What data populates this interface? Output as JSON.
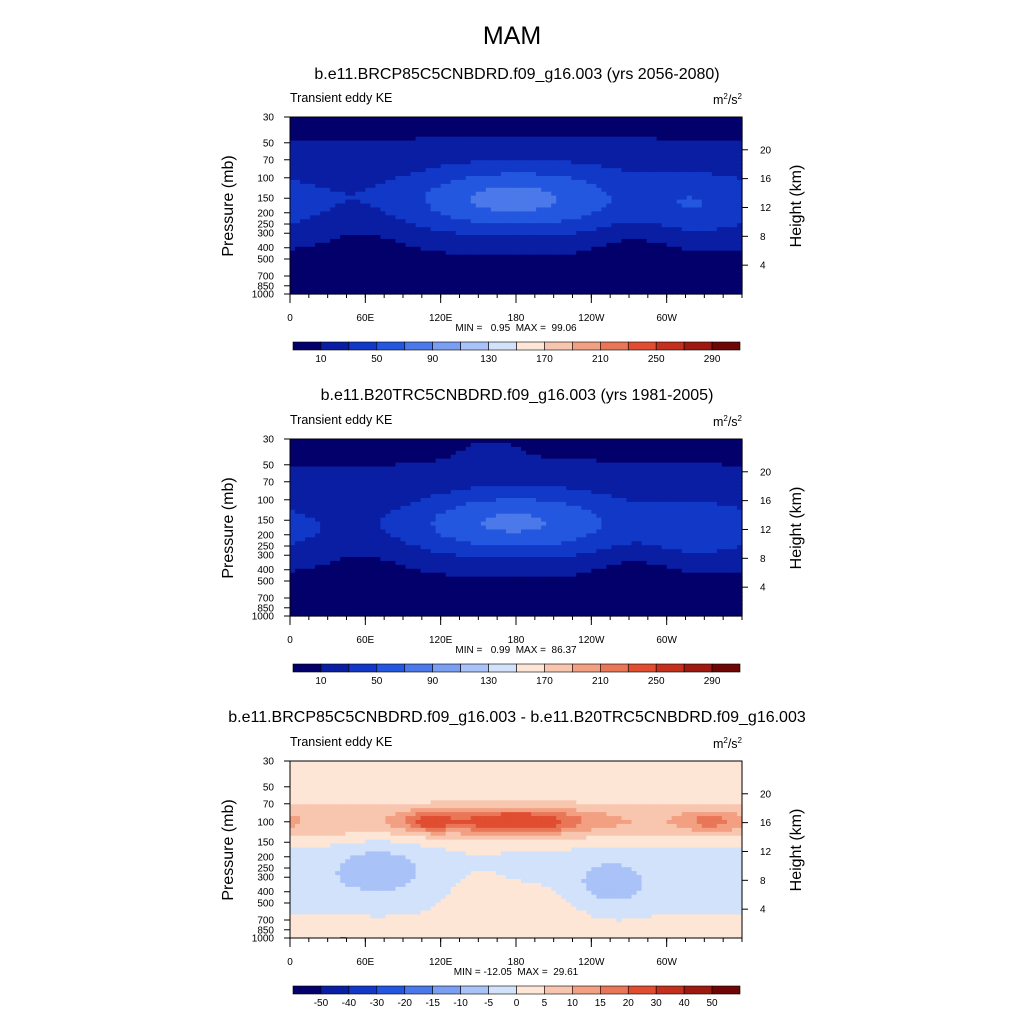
{
  "figure_title": "MAM",
  "field_label": "Transient eddy KE",
  "units_base": "m",
  "units_exp": "2",
  "units_mid": "/s",
  "units_exp2": "2",
  "left_axis_label": "Pressure (mb)",
  "right_axis_label": "Height (km)",
  "pressure_ticks": [
    "30",
    "50",
    "70",
    "100",
    "150",
    "200",
    "250",
    "300",
    "400",
    "500",
    "700",
    "850",
    "1000"
  ],
  "height_ticks": [
    "20",
    "16",
    "12",
    "8",
    "4"
  ],
  "lon_ticks": [
    "0",
    "60E",
    "120E",
    "180",
    "120W",
    "60W"
  ],
  "colors": {
    "abs_palette": [
      "#03006b",
      "#0a1ea3",
      "#1238c8",
      "#2457e0",
      "#4b79ea",
      "#7a9ef2",
      "#a9c2f7",
      "#d2e2fb",
      "#fde6d6",
      "#f8c6ae",
      "#f29f82",
      "#ea7658",
      "#e04d31",
      "#c4301c",
      "#9e1a10",
      "#6e0606"
    ],
    "diff_palette": [
      "#03006b",
      "#0a1ea3",
      "#1238c8",
      "#2457e0",
      "#4b79ea",
      "#7a9ef2",
      "#a9c2f7",
      "#d2e2fb",
      "#fde6d6",
      "#f8c6ae",
      "#f29f82",
      "#ea7658",
      "#e04d31",
      "#c4301c",
      "#9e1a10",
      "#6e0606"
    ],
    "terrain": "#000000"
  },
  "chart_data": [
    {
      "type": "heatmap",
      "title": "b.e11.BRCP85C5CNBDRD.f09_g16.003 (yrs 2056-2080)",
      "stats": "MIN =   0.95  MAX =  99.06",
      "colorbar_labels": [
        "10",
        "50",
        "90",
        "130",
        "170",
        "210",
        "250",
        "290"
      ],
      "colorbar_levels": [
        10,
        30,
        50,
        70,
        90,
        110,
        130,
        150,
        170,
        190,
        210,
        230,
        250,
        270,
        290
      ],
      "x_range": [
        0,
        360
      ],
      "pressure_range_mb": [
        30,
        1000
      ]
    },
    {
      "type": "heatmap",
      "title": "b.e11.B20TRC5CNBDRD.f09_g16.003 (yrs 1981-2005)",
      "stats": "MIN =   0.99  MAX =  86.37",
      "colorbar_labels": [
        "10",
        "50",
        "90",
        "130",
        "170",
        "210",
        "250",
        "290"
      ],
      "colorbar_levels": [
        10,
        30,
        50,
        70,
        90,
        110,
        130,
        150,
        170,
        190,
        210,
        230,
        250,
        270,
        290
      ],
      "x_range": [
        0,
        360
      ],
      "pressure_range_mb": [
        30,
        1000
      ]
    },
    {
      "type": "heatmap",
      "title": "b.e11.BRCP85C5CNBDRD.f09_g16.003 - b.e11.B20TRC5CNBDRD.f09_g16.003",
      "stats": "MIN = -12.05  MAX =  29.61",
      "colorbar_labels": [
        "-50",
        "-40",
        "-30",
        "-20",
        "-15",
        "-10",
        "-5",
        "0",
        "5",
        "10",
        "15",
        "20",
        "30",
        "40",
        "50"
      ],
      "colorbar_levels": [
        -50,
        -40,
        -30,
        -20,
        -15,
        -10,
        -5,
        0,
        5,
        10,
        15,
        20,
        30,
        40,
        50
      ],
      "x_range": [
        0,
        360
      ],
      "pressure_range_mb": [
        30,
        1000
      ]
    }
  ]
}
